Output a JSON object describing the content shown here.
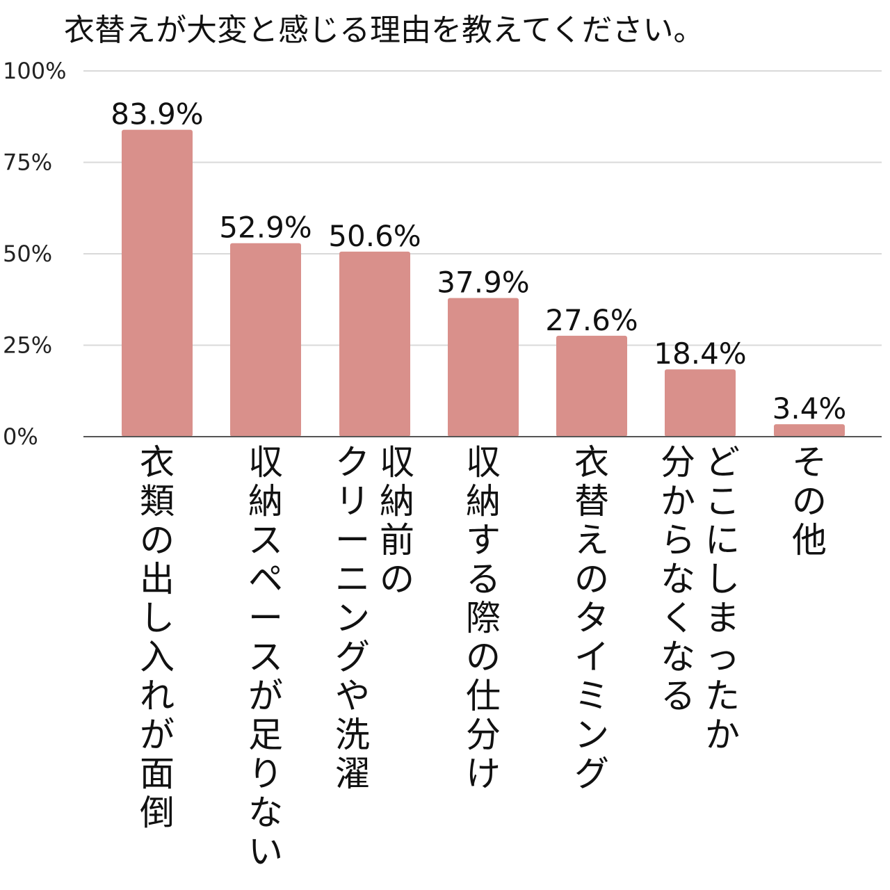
{
  "chart_data": {
    "type": "bar",
    "title": "衣替えが大変と感じる理由を教えてください。",
    "xlabel": "",
    "ylabel": "",
    "ylim": [
      0,
      100
    ],
    "y_ticks": [
      0,
      25,
      50,
      75,
      100
    ],
    "y_tick_labels": [
      "0%",
      "25%",
      "50%",
      "75%",
      "100%"
    ],
    "grid": true,
    "legend": "none",
    "categories": [
      "衣類の出し入れが面倒",
      "収納スペースが足りない",
      "収納前のクリーニングや洗濯",
      "収納する際の仕分け",
      "衣替えのタイミング",
      "どこにしまったか分からなくなる",
      "その他"
    ],
    "category_lines": [
      [
        "衣類の出し入れが面倒"
      ],
      [
        "収納スペースが足りない"
      ],
      [
        "収納前の",
        "クリーニングや洗濯"
      ],
      [
        "収納する際の仕分け"
      ],
      [
        "衣替えのタイミング"
      ],
      [
        "どこにしまったか",
        "分からなくなる"
      ],
      [
        "その他"
      ]
    ],
    "values": [
      83.9,
      52.9,
      50.6,
      37.9,
      27.6,
      18.4,
      3.4
    ],
    "value_labels": [
      "83.9%",
      "52.9%",
      "50.6%",
      "37.9%",
      "27.6%",
      "18.4%",
      "3.4%"
    ],
    "bar_color": "#d9908b"
  }
}
